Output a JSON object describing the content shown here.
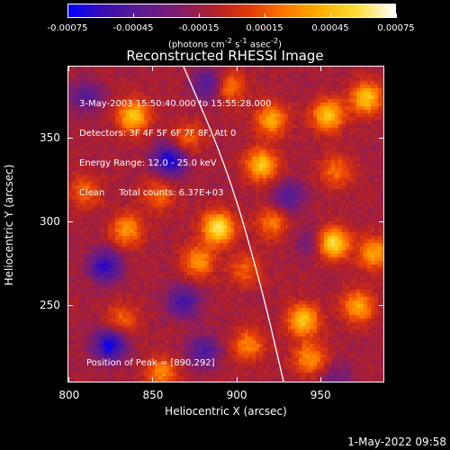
{
  "colorbar": {
    "ticks": [
      "-0.00075",
      "-0.00045",
      "-0.00015",
      "0.00015",
      "0.00045",
      "0.00075"
    ],
    "units_html": "(photons cm<sup>-2</sup> s<sup>-1</sup> asec<sup>-2</sup>)",
    "colors": [
      "#0000ff",
      "#3a10b0",
      "#5a1c90",
      "#7d1d70",
      "#b0202a",
      "#e23a0a",
      "#ff7a00",
      "#ffb300",
      "#ffe040",
      "#ffffff"
    ]
  },
  "plot": {
    "title": "Reconstructed RHESSI Image",
    "annotation_lines": [
      "3-May-2003 15:50:40.000 to 15:55:28.000",
      "Detectors: 3F 4F 5F 6F 7F 8F, Att 0",
      "Energy Range: 12.0 - 25.0 keV",
      "Clean     Total counts: 6.37E+03"
    ],
    "peak_text": "Position of Peak = [890,292]",
    "xlabel": "Heliocentric X (arcsec)",
    "ylabel": "Heliocentric Y (arcsec)",
    "xticks": [
      "800",
      "850",
      "900",
      "950"
    ],
    "yticks": [
      "250",
      "300",
      "350"
    ]
  },
  "timestamp": "1-May-2022 09:58",
  "chart_data": {
    "type": "heatmap",
    "title": "Reconstructed RHESSI Image",
    "xlabel": "Heliocentric X (arcsec)",
    "ylabel": "Heliocentric Y (arcsec)",
    "xlim": [
      799,
      988
    ],
    "ylim": [
      204,
      393
    ],
    "xticks": [
      800,
      850,
      900,
      950
    ],
    "yticks": [
      250,
      300,
      350
    ],
    "colorbar_range": [
      -0.00075,
      0.00075
    ],
    "peak_position": [
      890,
      292
    ],
    "limb_curve_points": [
      {
        "x": 868,
        "y": 393
      },
      {
        "x": 895,
        "y": 330
      },
      {
        "x": 915,
        "y": 260
      },
      {
        "x": 928,
        "y": 204
      }
    ],
    "blobs": [
      {
        "x": 889,
        "y": 296,
        "value": 0.00075
      },
      {
        "x": 877,
        "y": 276,
        "value": 0.00045
      },
      {
        "x": 834,
        "y": 295,
        "value": 0.00045
      },
      {
        "x": 838,
        "y": 363,
        "value": 0.0006
      },
      {
        "x": 870,
        "y": 350,
        "value": 0.0003
      },
      {
        "x": 915,
        "y": 334,
        "value": 0.0006
      },
      {
        "x": 921,
        "y": 361,
        "value": 0.0005
      },
      {
        "x": 955,
        "y": 364,
        "value": 0.0006
      },
      {
        "x": 978,
        "y": 374,
        "value": 0.0006
      },
      {
        "x": 960,
        "y": 330,
        "value": 0.00035
      },
      {
        "x": 958,
        "y": 287,
        "value": 0.0007
      },
      {
        "x": 983,
        "y": 281,
        "value": 0.0005
      },
      {
        "x": 921,
        "y": 299,
        "value": 0.00035
      },
      {
        "x": 940,
        "y": 241,
        "value": 0.0006
      },
      {
        "x": 973,
        "y": 249,
        "value": 0.0005
      },
      {
        "x": 944,
        "y": 218,
        "value": 0.00045
      },
      {
        "x": 907,
        "y": 226,
        "value": 0.0004
      },
      {
        "x": 855,
        "y": 209,
        "value": 0.0004
      },
      {
        "x": 831,
        "y": 241,
        "value": 0.0003
      },
      {
        "x": 809,
        "y": 318,
        "value": 0.0003
      },
      {
        "x": 853,
        "y": 316,
        "value": 0.0003
      },
      {
        "x": 905,
        "y": 271,
        "value": 0.0003
      },
      {
        "x": 895,
        "y": 381,
        "value": 0.0004
      },
      {
        "x": 824,
        "y": 226,
        "value": -0.0006
      },
      {
        "x": 860,
        "y": 337,
        "value": -0.0006
      },
      {
        "x": 821,
        "y": 273,
        "value": -0.0005
      },
      {
        "x": 868,
        "y": 252,
        "value": -0.0004
      },
      {
        "x": 884,
        "y": 382,
        "value": -0.0004
      },
      {
        "x": 931,
        "y": 315,
        "value": -0.0003
      },
      {
        "x": 810,
        "y": 375,
        "value": -0.0003
      },
      {
        "x": 880,
        "y": 222,
        "value": -0.00035
      },
      {
        "x": 944,
        "y": 287,
        "value": -0.0002
      },
      {
        "x": 960,
        "y": 205,
        "value": -0.0002
      }
    ]
  }
}
